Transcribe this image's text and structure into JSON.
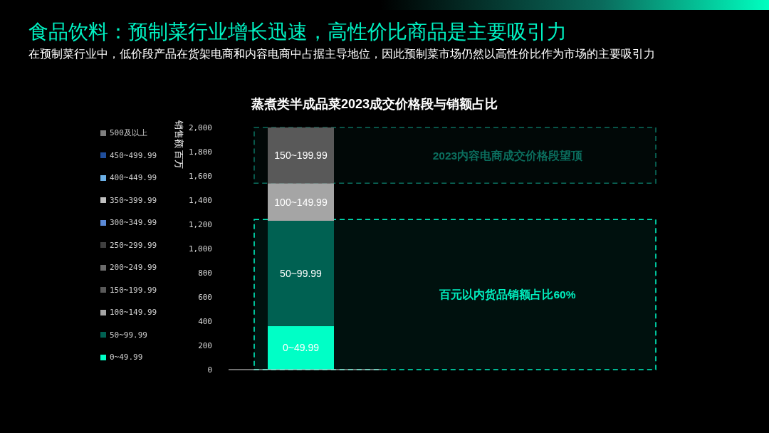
{
  "chart_data": {
    "type": "bar",
    "title": "食品饮料：预制菜行业增长迅速，高性价比商品是主要吸引力",
    "subtitle": "在预制菜行业中，低价段产品在货架电商和内容电商中占据主导地位，因此预制菜市场仍然以高性价比作为市场的主要吸引力",
    "annotations": [
      "蒸煮类半成品菜2023成交价格段与销额占比"
    ],
    "ylabel": "销售额 百万",
    "categories": [
      null
    ],
    "stacked": true,
    "series": [
      {
        "name": "0~49.99",
        "color": "#00ffc6",
        "values": [
          360
        ]
      },
      {
        "name": "50~99.99",
        "color": "#006152",
        "values": [
          870
        ]
      },
      {
        "name": "100~149.99",
        "color": "#a5a5a5",
        "values": [
          310
        ]
      },
      {
        "name": "150~199.99",
        "color": "#595959",
        "values": [
          460
        ]
      },
      {
        "name": "200~249.99",
        "color": "#6b6b6b",
        "values": [
          0
        ]
      },
      {
        "name": "250~299.99",
        "color": "#3f3f3f",
        "values": [
          0
        ]
      },
      {
        "name": "300~349.99",
        "color": "#5b8ad6",
        "values": [
          0
        ]
      },
      {
        "name": "350~399.99",
        "color": "#c0c0c0",
        "values": [
          0
        ]
      },
      {
        "name": "400~449.99",
        "color": "#6cb0e6",
        "values": [
          0
        ]
      },
      {
        "name": "450~499.99",
        "color": "#1f4e9c",
        "values": [
          0
        ]
      },
      {
        "name": "500及以上",
        "color": "#7f7f7f",
        "values": [
          0
        ]
      }
    ],
    "ylim": [
      0,
      2000
    ],
    "yticks": [
      0,
      200,
      400,
      600,
      800,
      {
        "value": 1000,
        "label": "1,000"
      },
      {
        "value": 1200,
        "label": "1,200"
      },
      {
        "value": 1400,
        "label": "1,400"
      },
      {
        "value": 1600,
        "label": "1,600"
      },
      {
        "value": 1800,
        "label": "1,800"
      },
      {
        "value": 2000,
        "label": "2,000"
      }
    ],
    "bands": [
      {
        "axis": "y",
        "from": 1540,
        "to": 2000,
        "label": "2023内容电商成交价格段望顶",
        "color": "#0b6e5e"
      },
      {
        "axis": "y",
        "from": 0,
        "to": 1240,
        "label": "百元以内货品销额占比60%",
        "color": "#00f0c0"
      }
    ],
    "legend": "left",
    "tick_labels": "y"
  }
}
